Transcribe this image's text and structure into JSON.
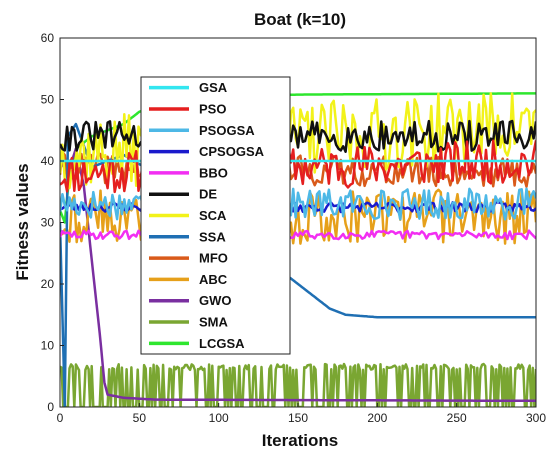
{
  "chart_data": {
    "type": "line",
    "title": "Boat  (k=10)",
    "xlabel": "Iterations",
    "ylabel": "Fitness  values",
    "xlim": [
      0,
      300
    ],
    "ylim": [
      0,
      60
    ],
    "xticks": [
      0,
      50,
      100,
      150,
      200,
      250,
      300
    ],
    "yticks": [
      0,
      10,
      20,
      30,
      40,
      50,
      60
    ],
    "grid": false,
    "legend_position": "upper-left",
    "series": [
      {
        "name": "GSA",
        "color": "#33e6f0",
        "kind": "flat",
        "anchors": [
          [
            0,
            40
          ],
          [
            300,
            40
          ]
        ]
      },
      {
        "name": "PSO",
        "color": "#e51f1f",
        "kind": "noisy",
        "base": 38,
        "amp": 3.5,
        "seed": 11,
        "anchors": [
          [
            0,
            36
          ],
          [
            300,
            38
          ]
        ]
      },
      {
        "name": "PSOGSA",
        "color": "#4db8e6",
        "kind": "noisy",
        "base": 33,
        "amp": 2.5,
        "seed": 17,
        "anchors": [
          [
            0,
            33
          ],
          [
            300,
            33
          ]
        ]
      },
      {
        "name": "CPSOGSA",
        "color": "#1a1acc",
        "kind": "noisy",
        "base": 32.5,
        "amp": 0.8,
        "seed": 23,
        "anchors": [
          [
            0,
            32.5
          ],
          [
            300,
            32.5
          ]
        ]
      },
      {
        "name": "BBO",
        "color": "#f22ef2",
        "kind": "noisy",
        "base": 28,
        "amp": 0.7,
        "seed": 29,
        "anchors": [
          [
            0,
            28
          ],
          [
            300,
            28
          ]
        ]
      },
      {
        "name": "DE",
        "color": "#111111",
        "kind": "noisy",
        "base": 44,
        "amp": 2.5,
        "seed": 31,
        "anchors": [
          [
            0,
            42
          ],
          [
            300,
            42
          ]
        ]
      },
      {
        "name": "SCA",
        "color": "#f2f21a",
        "kind": "noisy",
        "base": 41,
        "amp": 6,
        "seed": 37,
        "anchors": [
          [
            0,
            40
          ],
          [
            300,
            45
          ]
        ]
      },
      {
        "name": "SSA",
        "color": "#1f6fb3",
        "kind": "path",
        "anchors": [
          [
            0,
            30
          ],
          [
            3,
            0
          ],
          [
            5,
            44
          ],
          [
            10,
            46
          ],
          [
            20,
            39
          ],
          [
            40,
            41
          ],
          [
            60,
            38
          ],
          [
            80,
            40
          ],
          [
            100,
            39
          ],
          [
            115,
            30
          ],
          [
            120,
            21
          ],
          [
            130,
            19
          ],
          [
            145,
            21
          ],
          [
            150,
            20
          ],
          [
            160,
            18
          ],
          [
            170,
            16
          ],
          [
            180,
            15
          ],
          [
            200,
            14.6
          ],
          [
            300,
            14.6
          ]
        ]
      },
      {
        "name": "MFO",
        "color": "#d95a1a",
        "kind": "noisy",
        "base": 39,
        "amp": 2.5,
        "seed": 41,
        "anchors": [
          [
            0,
            38
          ],
          [
            300,
            37
          ]
        ]
      },
      {
        "name": "ABC",
        "color": "#e6a01a",
        "kind": "noisy",
        "base": 31,
        "amp": 4.5,
        "seed": 43,
        "anchors": [
          [
            0,
            30
          ],
          [
            300,
            30
          ]
        ]
      },
      {
        "name": "GWO",
        "color": "#7a2fa0",
        "kind": "path",
        "anchors": [
          [
            0,
            40
          ],
          [
            5,
            38
          ],
          [
            10,
            42
          ],
          [
            15,
            36
          ],
          [
            20,
            24
          ],
          [
            25,
            12
          ],
          [
            28,
            4
          ],
          [
            30,
            2
          ],
          [
            40,
            1.5
          ],
          [
            60,
            1.2
          ],
          [
            300,
            1
          ]
        ]
      },
      {
        "name": "SMA",
        "color": "#7aa632",
        "kind": "binary",
        "high": 6.5,
        "low": 0,
        "seed": 47,
        "anchors": [
          [
            0,
            5
          ],
          [
            300,
            5
          ]
        ]
      },
      {
        "name": "LCGSA",
        "color": "#2ee62e",
        "kind": "path",
        "anchors": [
          [
            0,
            32
          ],
          [
            3,
            30
          ],
          [
            6,
            38
          ],
          [
            10,
            42
          ],
          [
            20,
            44
          ],
          [
            30,
            45
          ],
          [
            40,
            46
          ],
          [
            50,
            48
          ],
          [
            60,
            49
          ],
          [
            80,
            50
          ],
          [
            100,
            50.5
          ],
          [
            150,
            50.8
          ],
          [
            300,
            51
          ]
        ]
      }
    ]
  }
}
